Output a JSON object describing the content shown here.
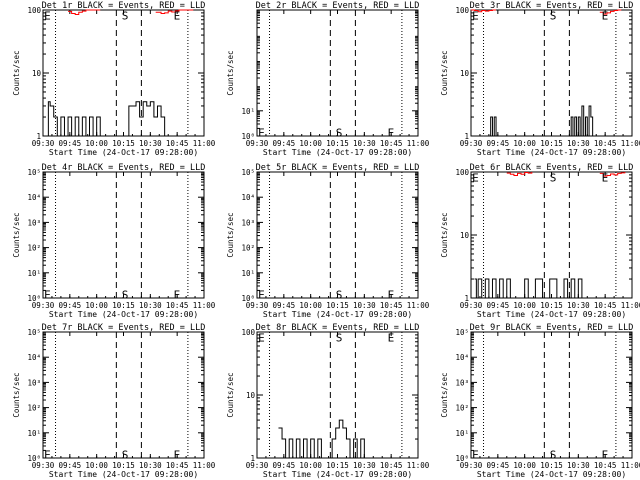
{
  "figure": {
    "xtick_labels": [
      "09:30",
      "09:45",
      "10:00",
      "10:15",
      "10:30",
      "10:45",
      "11:00"
    ],
    "xtick_values": [
      0,
      15,
      30,
      45,
      60,
      75,
      90
    ],
    "xlim": [
      0,
      90
    ],
    "xlabel": "Start Time (24-Oct-17 09:28:00)",
    "ylabel": "Counts/sec",
    "vlines_dotted": [
      7,
      81
    ],
    "vlines_dashed": [
      41,
      55
    ],
    "colors": {
      "events": "#000000",
      "lld": "#ff0000"
    }
  },
  "chart_data": [
    {
      "type": "line",
      "title": "Det 1r BLACK = Events, RED = LLD",
      "yscale": "log",
      "ytick_labels": [
        "1",
        "10",
        "100"
      ],
      "ytick_values": [
        1,
        10,
        100
      ],
      "ylim": [
        1,
        100
      ],
      "markers": [
        {
          "text": "E",
          "x": 0.6,
          "y": 85
        },
        {
          "text": "S",
          "x": 44,
          "y": 85
        },
        {
          "text": "E",
          "x": 73,
          "y": 85
        }
      ],
      "series": [
        {
          "name": "Events",
          "x": [
            0,
            2,
            3,
            4,
            6,
            8,
            10,
            12,
            14,
            16,
            18,
            20,
            22,
            24,
            26,
            28,
            30,
            32,
            33,
            34,
            36,
            38,
            40,
            42,
            44,
            46,
            48,
            50,
            52,
            54,
            56,
            58,
            60,
            62,
            64,
            66,
            68,
            70,
            72,
            74
          ],
          "y": [
            1,
            1,
            3.5,
            3,
            2,
            1,
            2,
            1,
            2,
            1,
            2,
            1,
            2,
            1,
            2,
            1,
            2,
            1,
            1,
            1,
            1,
            1,
            1,
            1,
            1,
            1,
            3,
            3,
            3.5,
            2,
            3.5,
            3,
            3.5,
            2,
            3,
            2,
            1,
            1,
            1,
            1
          ]
        },
        {
          "name": "LLD",
          "x": [
            14,
            16,
            18,
            20,
            22,
            24,
            26,
            28,
            30,
            32
          ],
          "y": [
            95,
            88,
            85,
            92,
            96,
            100,
            100,
            100,
            100,
            100
          ]
        },
        {
          "name": "LLD",
          "x": [
            63,
            66,
            68,
            70,
            72,
            74,
            76,
            78,
            80,
            82,
            84
          ],
          "y": [
            92,
            88,
            90,
            96,
            93,
            97,
            100,
            100,
            100,
            100,
            100
          ]
        }
      ]
    },
    {
      "type": "line",
      "title": "Det 2r BLACK = Events, RED = LLD",
      "yscale": "log",
      "ytick_labels": [
        "10⁰",
        "10¹"
      ],
      "ytick_values": [
        1,
        10
      ],
      "ylim": [
        1,
        100000
      ],
      "markers": [
        {
          "text": "E",
          "x": 0.6,
          "y": 1.5
        },
        {
          "text": "S",
          "x": 44,
          "y": 1.5
        },
        {
          "text": "E",
          "x": 73,
          "y": 1.5
        }
      ],
      "series": []
    },
    {
      "type": "line",
      "title": "Det 3r BLACK = Events, RED = LLD",
      "yscale": "log",
      "ytick_labels": [
        "1",
        "10",
        "100"
      ],
      "ytick_values": [
        1,
        10,
        100
      ],
      "ylim": [
        1,
        100
      ],
      "markers": [
        {
          "text": "E",
          "x": 0.6,
          "y": 85
        },
        {
          "text": "S",
          "x": 44,
          "y": 85
        },
        {
          "text": "E",
          "x": 73,
          "y": 85
        }
      ],
      "series": [
        {
          "name": "Events",
          "x": [
            10,
            11,
            12,
            13,
            14,
            55,
            56,
            57,
            58,
            59,
            60,
            61,
            62,
            63,
            64,
            65,
            66,
            67,
            68,
            69,
            70
          ],
          "y": [
            1,
            2,
            1,
            2,
            1,
            1,
            2,
            1,
            2,
            1,
            2,
            1,
            3,
            1,
            2,
            1,
            3,
            2,
            1,
            1,
            1
          ]
        },
        {
          "name": "LLD",
          "x": [
            0,
            2,
            4,
            6,
            8,
            10,
            12,
            14
          ],
          "y": [
            100,
            98,
            94,
            98,
            96,
            98,
            100,
            100
          ]
        },
        {
          "name": "LLD",
          "x": [
            72,
            74,
            76,
            78,
            80,
            82,
            84
          ],
          "y": [
            92,
            86,
            90,
            95,
            98,
            100,
            100
          ]
        }
      ]
    },
    {
      "type": "line",
      "title": "Det 4r BLACK = Events, RED = LLD",
      "yscale": "log",
      "ytick_labels": [
        "10⁰",
        "10¹",
        "10²",
        "10³",
        "10⁴",
        "10⁵"
      ],
      "ytick_values": [
        1,
        10,
        100,
        1000,
        10000,
        100000
      ],
      "ylim": [
        1,
        100000
      ],
      "markers": [
        {
          "text": "E",
          "x": 0.6,
          "y": 1.5
        },
        {
          "text": "S",
          "x": 44,
          "y": 1.5
        },
        {
          "text": "E",
          "x": 73,
          "y": 1.5
        }
      ],
      "series": []
    },
    {
      "type": "line",
      "title": "Det 5r BLACK = Events, RED = LLD",
      "yscale": "log",
      "ytick_labels": [
        "10⁰",
        "10¹",
        "10²",
        "10³",
        "10⁴",
        "10⁵"
      ],
      "ytick_values": [
        1,
        10,
        100,
        1000,
        10000,
        100000
      ],
      "ylim": [
        1,
        100000
      ],
      "markers": [
        {
          "text": "E",
          "x": 0.6,
          "y": 1.5
        },
        {
          "text": "S",
          "x": 44,
          "y": 1.5
        },
        {
          "text": "E",
          "x": 73,
          "y": 1.5
        }
      ],
      "series": []
    },
    {
      "type": "line",
      "title": "Det 6r BLACK = Events, RED = LLD",
      "yscale": "log",
      "ytick_labels": [
        "1",
        "10",
        "100"
      ],
      "ytick_values": [
        1,
        10,
        100
      ],
      "ylim": [
        1,
        100
      ],
      "markers": [
        {
          "text": "E",
          "x": 0.6,
          "y": 85
        },
        {
          "text": "S",
          "x": 44,
          "y": 85
        },
        {
          "text": "E",
          "x": 73,
          "y": 85
        }
      ],
      "series": [
        {
          "name": "Events",
          "x": [
            2,
            3,
            4,
            6,
            8,
            10,
            12,
            14,
            16,
            18,
            20,
            22,
            24,
            26,
            28,
            30,
            32,
            36,
            40,
            44,
            48,
            52,
            54,
            56,
            58,
            60,
            62,
            64,
            66,
            68
          ],
          "y": [
            2,
            1,
            2,
            1,
            2,
            1,
            2,
            1,
            2,
            1,
            2,
            1,
            1,
            1,
            1,
            2,
            1,
            2,
            1,
            2,
            1,
            2,
            1,
            2,
            1,
            2,
            1,
            1,
            1,
            1
          ]
        },
        {
          "name": "LLD",
          "x": [
            20,
            22,
            24,
            26,
            28,
            30,
            32,
            34
          ],
          "y": [
            96,
            92,
            88,
            95,
            92,
            98,
            96,
            100
          ]
        },
        {
          "name": "LLD",
          "x": [
            72,
            74,
            76,
            78,
            80,
            82,
            84,
            86
          ],
          "y": [
            95,
            86,
            88,
            93,
            90,
            95,
            97,
            100
          ]
        }
      ]
    },
    {
      "type": "line",
      "title": "Det 7r BLACK = Events, RED = LLD",
      "yscale": "log",
      "ytick_labels": [
        "10⁰",
        "10¹",
        "10²",
        "10³",
        "10⁴",
        "10⁵"
      ],
      "ytick_values": [
        1,
        10,
        100,
        1000,
        10000,
        100000
      ],
      "ylim": [
        1,
        100000
      ],
      "markers": [
        {
          "text": "E",
          "x": 0.6,
          "y": 1.5
        },
        {
          "text": "S",
          "x": 44,
          "y": 1.5
        },
        {
          "text": "E",
          "x": 73,
          "y": 1.5
        }
      ],
      "series": []
    },
    {
      "type": "line",
      "title": "Det 8r BLACK = Events, RED = LLD",
      "yscale": "log",
      "ytick_labels": [
        "1",
        "10",
        "100"
      ],
      "ytick_values": [
        1,
        10,
        100
      ],
      "ylim": [
        1,
        100
      ],
      "markers": [
        {
          "text": "E",
          "x": 0.6,
          "y": 85
        },
        {
          "text": "S",
          "x": 44,
          "y": 85
        },
        {
          "text": "E",
          "x": 73,
          "y": 85
        }
      ],
      "series": [
        {
          "name": "Events",
          "x": [
            12,
            14,
            16,
            18,
            20,
            22,
            24,
            26,
            28,
            30,
            32,
            34,
            36,
            38,
            40,
            42,
            44,
            46,
            48,
            50,
            52,
            54,
            56,
            58,
            60
          ],
          "y": [
            3,
            2,
            1,
            2,
            1,
            2,
            1,
            2,
            1,
            2,
            1,
            2,
            1,
            1,
            1,
            2,
            3,
            4,
            3,
            2,
            1,
            2,
            1,
            2,
            1
          ]
        }
      ]
    },
    {
      "type": "line",
      "title": "Det 9r BLACK = Events, RED = LLD",
      "yscale": "log",
      "ytick_labels": [
        "10⁰",
        "10¹",
        "10²",
        "10³",
        "10⁴",
        "10⁵"
      ],
      "ytick_values": [
        1,
        10,
        100,
        1000,
        10000,
        100000
      ],
      "ylim": [
        1,
        100000
      ],
      "markers": [
        {
          "text": "E",
          "x": 0.6,
          "y": 1.5
        },
        {
          "text": "S",
          "x": 44,
          "y": 1.5
        },
        {
          "text": "E",
          "x": 73,
          "y": 1.5
        }
      ],
      "series": []
    }
  ]
}
